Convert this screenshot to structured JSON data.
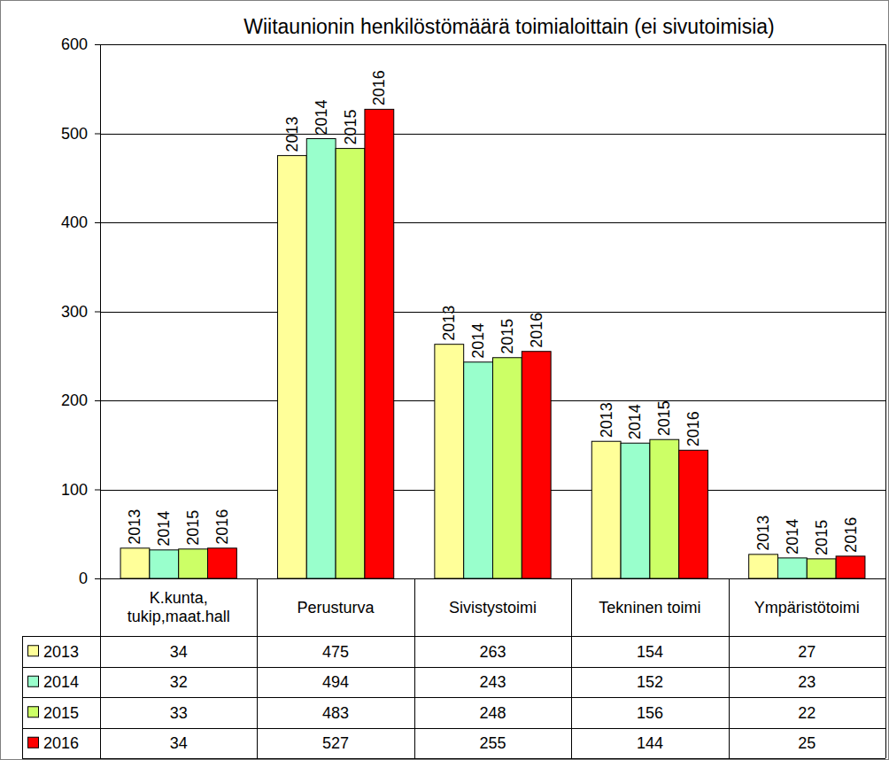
{
  "chart_data": {
    "type": "bar",
    "title": "Wiitaunionin henkilöstömäärä toimialoittain (ei sivutoimisia)",
    "categories": [
      "K.kunta, tukip,maat.hall",
      "Perusturva",
      "Sivistystoimi",
      "Tekninen toimi",
      "Ympäristötoimi"
    ],
    "series": [
      {
        "name": "2013",
        "color": "#ffff99",
        "values": [
          34,
          475,
          263,
          154,
          27
        ]
      },
      {
        "name": "2014",
        "color": "#99ffcc",
        "values": [
          32,
          494,
          243,
          152,
          23
        ]
      },
      {
        "name": "2015",
        "color": "#ccff66",
        "values": [
          33,
          483,
          248,
          156,
          22
        ]
      },
      {
        "name": "2016",
        "color": "#ff0000",
        "values": [
          34,
          527,
          255,
          144,
          25
        ]
      }
    ],
    "ylim": [
      0,
      600
    ],
    "yticks": [
      0,
      100,
      200,
      300,
      400,
      500,
      600
    ],
    "grid": true,
    "legend": "bottom"
  }
}
